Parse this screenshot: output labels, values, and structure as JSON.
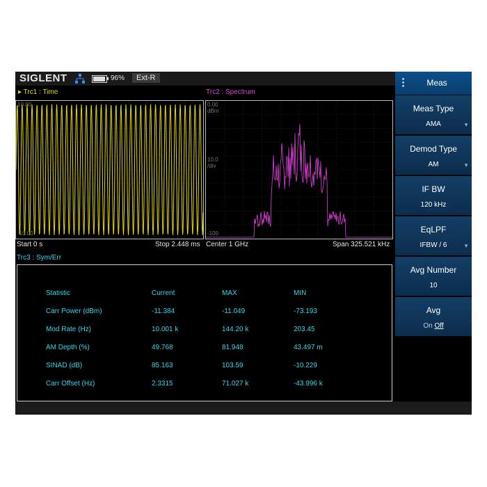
{
  "header": {
    "brand": "SIGLENT",
    "battery_percent": "96%",
    "battery_level": 0.96,
    "ref_source": "Ext-R"
  },
  "trace1": {
    "label": "Trc1 :  Time",
    "top_ref": "10.00",
    "bottom_ref": "-10.00",
    "start": "Start 0 s",
    "stop": "Stop 2.448 ms",
    "color": "#e6d800"
  },
  "trace2": {
    "label": "Trc2 :  Spectrum",
    "ref_level": "0.00",
    "ref_unit": "dBm",
    "scale": "10.0",
    "scale_unit": "/div",
    "bottom_ref": "-100",
    "center": "Center 1 GHz",
    "span": "Span 325.521 kHz",
    "color": "#e040e0"
  },
  "trace3": {
    "label": "Trc3 :  Sym/Err",
    "color": "#30d8e8"
  },
  "stats_table": {
    "headers": [
      "Statistic",
      "Current",
      "MAX",
      "MIN"
    ],
    "rows": [
      [
        "Carr Power (dBm)",
        "-11.384",
        "-11.049",
        "-73.193"
      ],
      [
        "Mod Rate (Hz)",
        "10.001 k",
        "144.20 k",
        "203.45"
      ],
      [
        "AM Depth (%)",
        "49.768",
        "81.948",
        "43.497 m"
      ],
      [
        "SINAD (dB)",
        "85.163",
        "103.59",
        "-10.229"
      ],
      [
        "Carr Offset (Hz)",
        "2.3315",
        "71.027 k",
        "-43.996 k"
      ]
    ]
  },
  "menu": {
    "title": "Meas",
    "items": [
      {
        "label": "Meas Type",
        "value": "AMA",
        "has_dropdown": true
      },
      {
        "label": "Demod Type",
        "value": "AM",
        "has_dropdown": true
      },
      {
        "label": "IF BW",
        "value": "120 kHz",
        "has_dropdown": false
      },
      {
        "label": "EqLPF",
        "value": "IFBW / 6",
        "has_dropdown": true
      },
      {
        "label": "Avg Number",
        "value": "10",
        "has_dropdown": false
      },
      {
        "label": "Avg",
        "on": "On",
        "off": "Off",
        "selected": "Off"
      }
    ]
  },
  "icons": {
    "network": "network-icon",
    "battery": "battery-icon",
    "marker": "triangle-marker-icon",
    "menu": "menu-dots-icon",
    "dropdown": "chevron-down-icon"
  },
  "colors": {
    "trace1": "#e6d800",
    "trace2": "#e040e0",
    "trace3": "#30d8e8",
    "menu_bg": "#133e66"
  }
}
